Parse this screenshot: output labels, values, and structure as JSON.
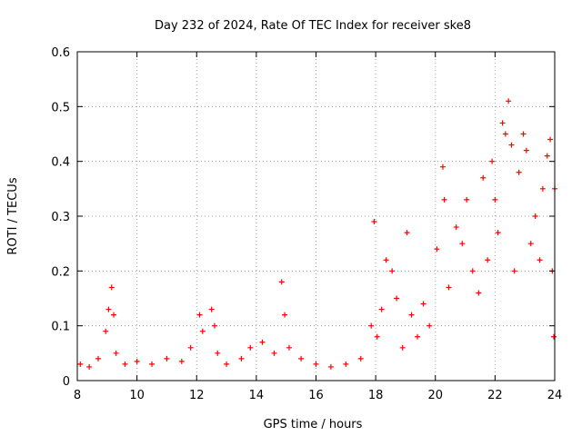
{
  "chart_data": {
    "type": "scatter",
    "title": "Day 232 of 2024, Rate Of TEC Index for receiver ske8",
    "xlabel": "GPS time / hours",
    "ylabel": "ROTI / TECUs",
    "xlim": [
      8,
      24
    ],
    "ylim": [
      0,
      0.6
    ],
    "x_ticks": [
      "8",
      "10",
      "12",
      "14",
      "16",
      "18",
      "20",
      "22",
      "24"
    ],
    "y_ticks": [
      "0",
      "0.1",
      "0.2",
      "0.3",
      "0.4",
      "0.5",
      "0.6"
    ],
    "grid": true,
    "marker": "+",
    "colors": {
      "series": "#ff0000",
      "grid": "#a0a0a0",
      "axis": "#000000"
    },
    "series": [
      {
        "name": "ROTI",
        "x": [
          8.1,
          8.4,
          8.7,
          8.95,
          9.05,
          9.15,
          9.22,
          9.3,
          9.6,
          10.0,
          10.5,
          11.0,
          11.5,
          11.8,
          12.1,
          12.2,
          12.5,
          12.6,
          12.7,
          13.0,
          13.5,
          13.8,
          14.2,
          14.6,
          14.85,
          14.95,
          15.1,
          15.5,
          16.0,
          16.5,
          17.0,
          17.5,
          17.85,
          17.95,
          18.05,
          18.2,
          18.35,
          18.55,
          18.7,
          18.9,
          19.05,
          19.2,
          19.4,
          19.6,
          19.8,
          20.05,
          20.25,
          20.3,
          20.45,
          20.7,
          20.9,
          21.05,
          21.25,
          21.45,
          21.6,
          21.75,
          21.9,
          22.0,
          22.1,
          22.25,
          22.35,
          22.45,
          22.55,
          22.65,
          22.8,
          22.95,
          23.05,
          23.2,
          23.35,
          23.5,
          23.6,
          23.75,
          23.85,
          23.92,
          23.97,
          24.0
        ],
        "y": [
          0.03,
          0.025,
          0.04,
          0.09,
          0.13,
          0.17,
          0.12,
          0.05,
          0.03,
          0.035,
          0.03,
          0.04,
          0.035,
          0.06,
          0.12,
          0.09,
          0.13,
          0.1,
          0.05,
          0.03,
          0.04,
          0.06,
          0.07,
          0.05,
          0.18,
          0.12,
          0.06,
          0.04,
          0.03,
          0.025,
          0.03,
          0.04,
          0.1,
          0.29,
          0.08,
          0.13,
          0.22,
          0.2,
          0.15,
          0.06,
          0.27,
          0.12,
          0.08,
          0.14,
          0.1,
          0.24,
          0.39,
          0.33,
          0.17,
          0.28,
          0.25,
          0.33,
          0.2,
          0.16,
          0.37,
          0.22,
          0.4,
          0.33,
          0.27,
          0.47,
          0.45,
          0.51,
          0.43,
          0.2,
          0.38,
          0.45,
          0.42,
          0.25,
          0.3,
          0.22,
          0.35,
          0.41,
          0.44,
          0.2,
          0.08,
          0.35
        ]
      }
    ]
  }
}
